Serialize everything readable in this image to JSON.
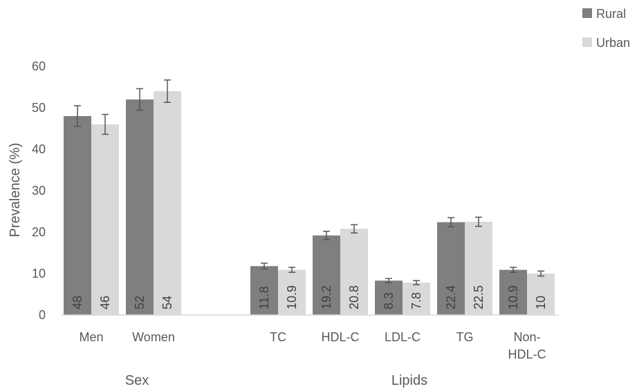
{
  "chart_data": {
    "type": "bar",
    "title": "",
    "ylabel": "Prevalence (%)",
    "ylim": [
      0,
      60
    ],
    "yticks": [
      0,
      10,
      20,
      30,
      40,
      50,
      60
    ],
    "grid": false,
    "legend_position": "top-right",
    "groups": [
      {
        "label": "Sex",
        "categories": [
          "Men",
          "Women"
        ]
      },
      {
        "label": "Lipids",
        "categories": [
          "TC",
          "HDL-C",
          "LDL-C",
          "TG",
          "Non-HDL-C"
        ]
      }
    ],
    "categories": [
      "Men",
      "Women",
      "TC",
      "HDL-C",
      "LDL-C",
      "TG",
      "Non-HDL-C"
    ],
    "category_lines": [
      [
        "Men"
      ],
      [
        "Women"
      ],
      [
        "TC"
      ],
      [
        "HDL-C"
      ],
      [
        "LDL-C"
      ],
      [
        "TG"
      ],
      [
        "Non-",
        "HDL-C"
      ]
    ],
    "series": [
      {
        "name": "Rural",
        "color": "#7f7f7f",
        "values": [
          48,
          52,
          11.8,
          19.2,
          8.3,
          22.4,
          10.9
        ],
        "labels": [
          "48",
          "52",
          "11.8",
          "19.2",
          "8.3",
          "22.4",
          "10.9"
        ],
        "error": [
          2.5,
          2.6,
          0.7,
          1.0,
          0.5,
          1.1,
          0.6
        ]
      },
      {
        "name": "Urban",
        "color": "#d9d9d9",
        "values": [
          46,
          54,
          10.9,
          20.8,
          7.8,
          22.5,
          10
        ],
        "labels": [
          "46",
          "54",
          "10.9",
          "20.8",
          "7.8",
          "22.5",
          "10"
        ],
        "error": [
          2.4,
          2.7,
          0.6,
          1.0,
          0.5,
          1.1,
          0.6
        ]
      }
    ]
  }
}
